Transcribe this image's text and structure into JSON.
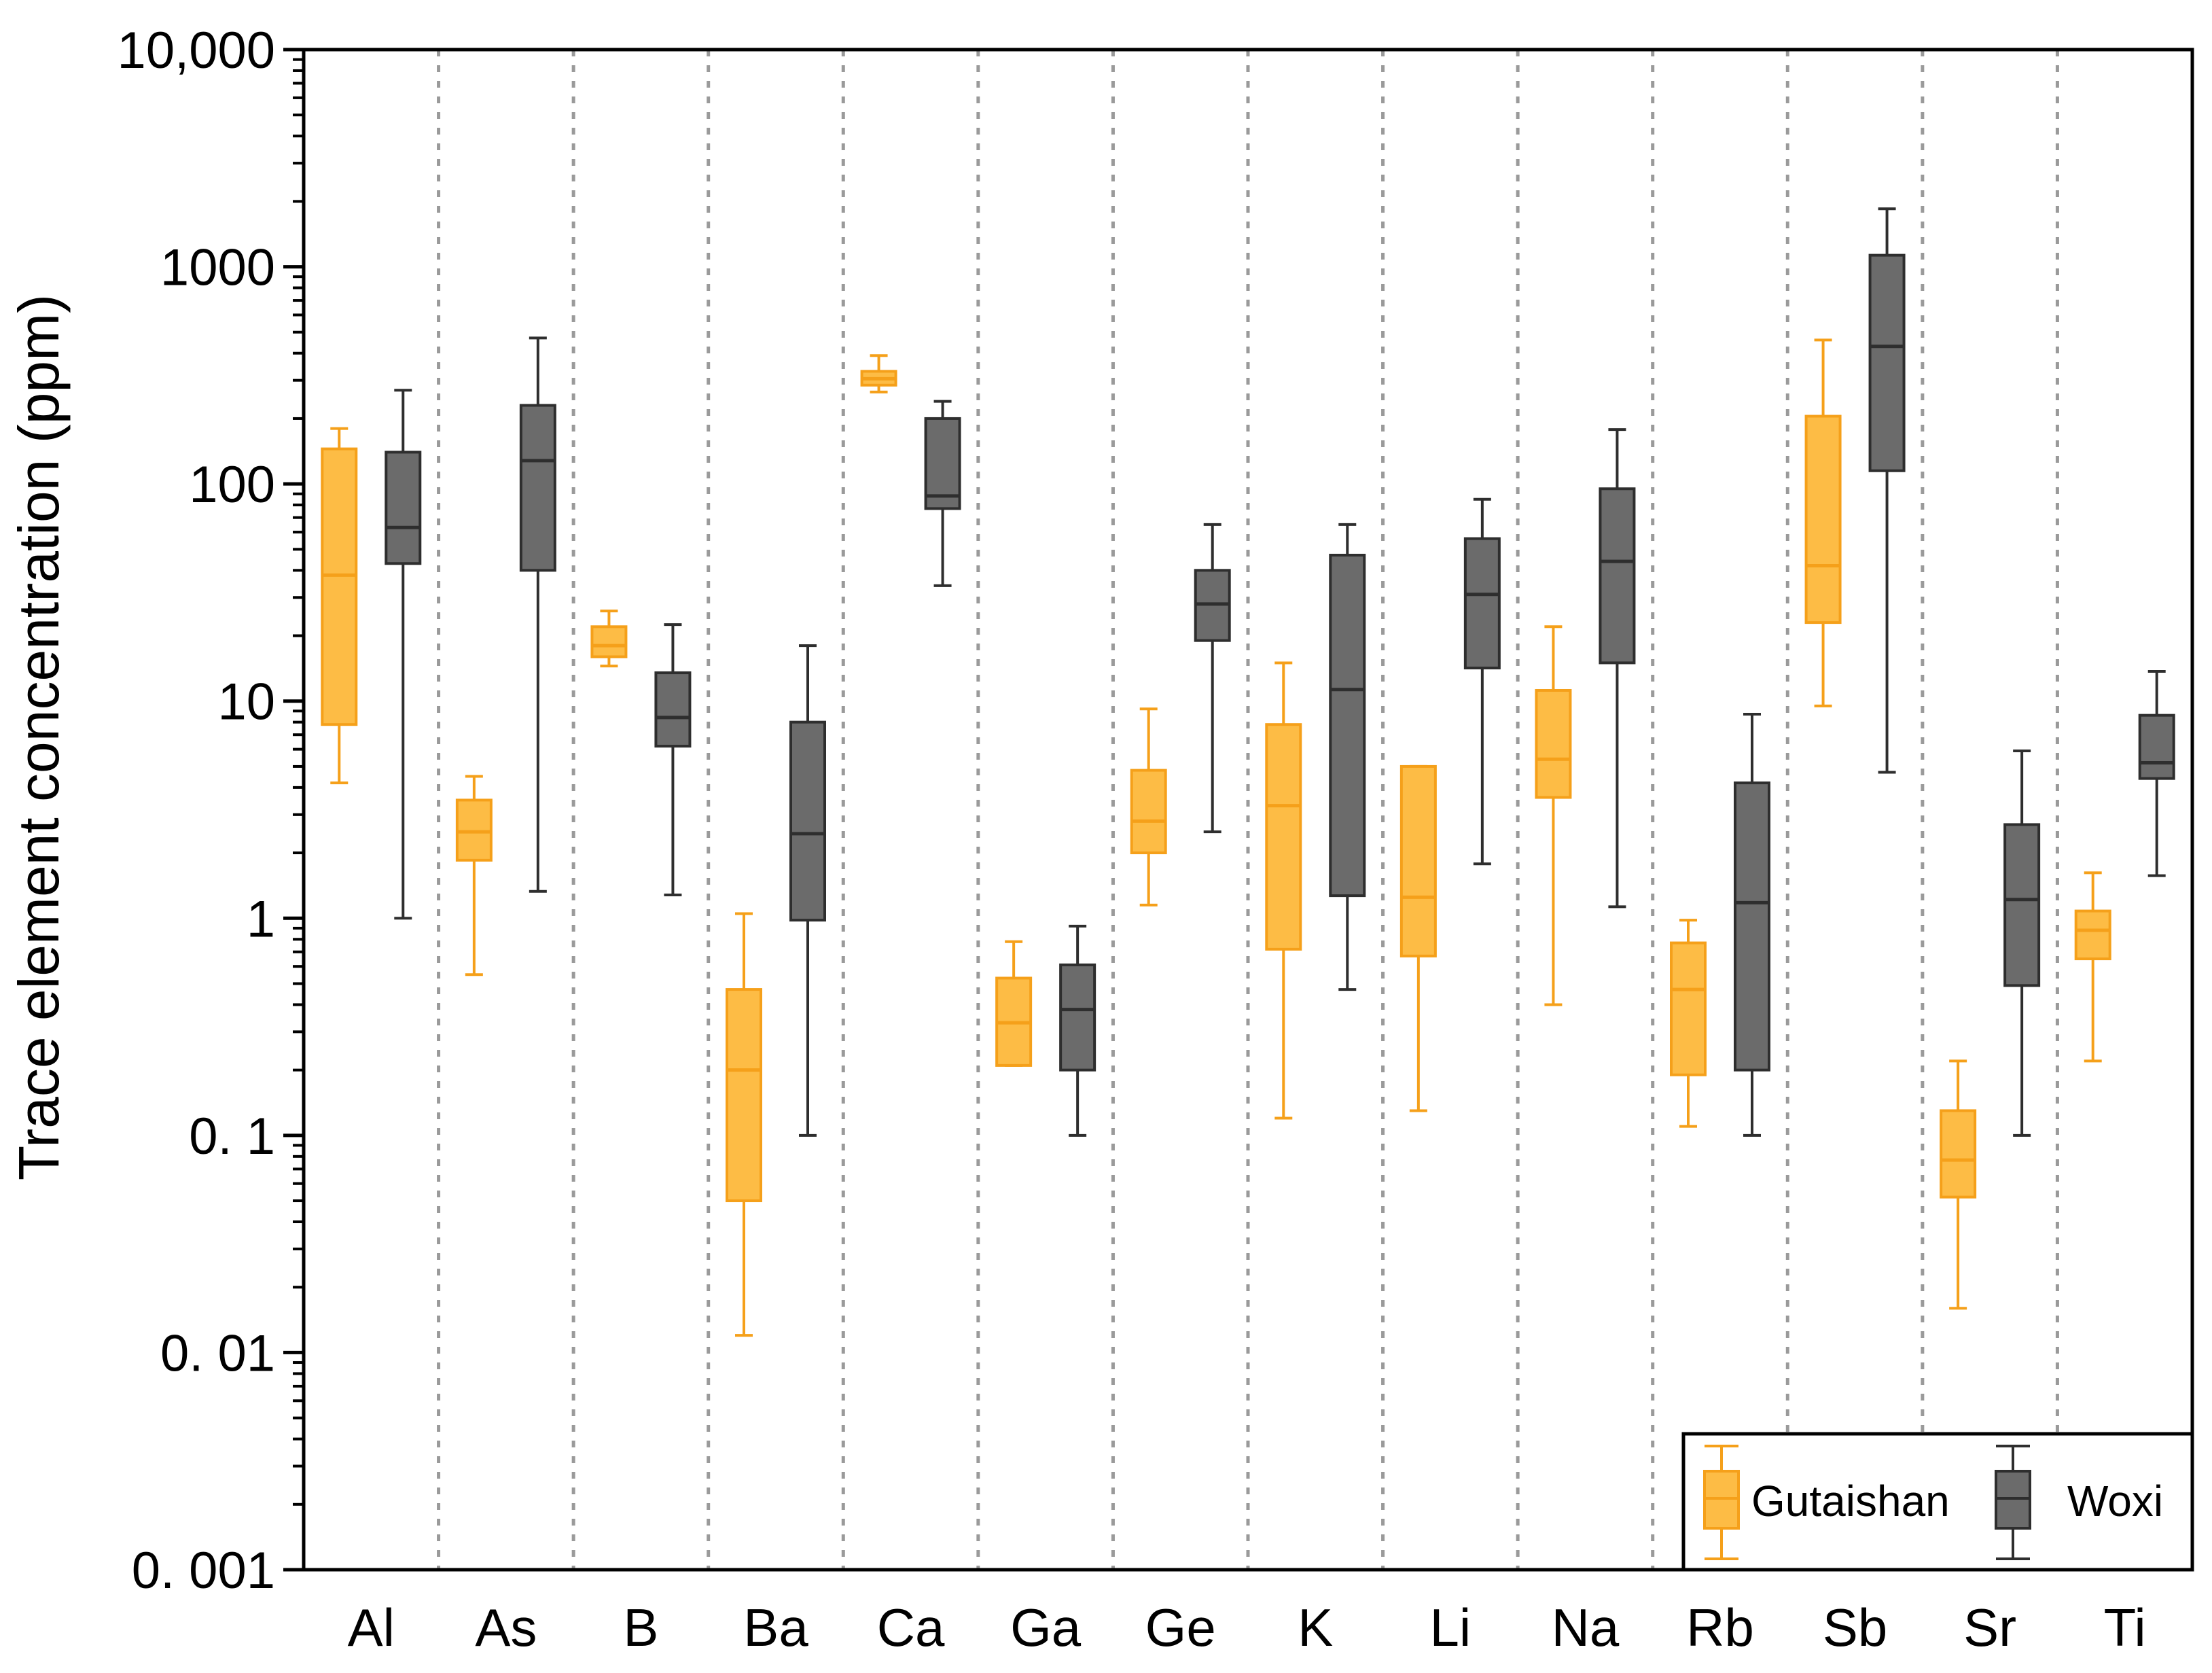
{
  "chart_data": {
    "type": "box",
    "title": "",
    "xlabel": "",
    "ylabel": "Trace element concentration (ppm)",
    "yscale": "log",
    "ylim": [
      0.001,
      10000
    ],
    "y_tick_values": [
      0.001,
      0.01,
      0.1,
      1,
      10,
      100,
      1000,
      10000
    ],
    "y_tick_labels": [
      "0. 001",
      "0. 01",
      "0. 1",
      "1",
      "10",
      "100",
      "1000",
      "10,000"
    ],
    "categories": [
      "Al",
      "As",
      "B",
      "Ba",
      "Ca",
      "Ga",
      "Ge",
      "K",
      "Li",
      "Na",
      "Rb",
      "Sb",
      "Sr",
      "Ti"
    ],
    "legend_position": "bottom-right",
    "colors": {
      "Gutaishan_fill": "#FDBC45",
      "Gutaishan_line": "#F5A01A",
      "Woxi_fill": "#6B6B6B",
      "Woxi_line": "#2E2E2E",
      "divider": "#9A9A9A",
      "axis": "#000000"
    },
    "series": [
      {
        "name": "Gutaishan",
        "boxes": [
          {
            "category": "Al",
            "min": 4.2,
            "q1": 7.8,
            "median": 38,
            "q3": 145,
            "max": 180
          },
          {
            "category": "As",
            "min": 0.55,
            "q1": 1.85,
            "median": 2.5,
            "q3": 3.5,
            "max": 4.5
          },
          {
            "category": "B",
            "min": 14.5,
            "q1": 16,
            "median": 18,
            "q3": 22,
            "max": 26
          },
          {
            "category": "Ba",
            "min": 0.012,
            "q1": 0.05,
            "median": 0.2,
            "q3": 0.47,
            "max": 1.05
          },
          {
            "category": "Ca",
            "min": 265,
            "q1": 285,
            "median": 305,
            "q3": 330,
            "max": 390
          },
          {
            "category": "Ga",
            "min": 0.21,
            "q1": 0.21,
            "median": 0.33,
            "q3": 0.53,
            "max": 0.78
          },
          {
            "category": "Ge",
            "min": 1.15,
            "q1": 2.0,
            "median": 2.8,
            "q3": 4.8,
            "max": 9.2
          },
          {
            "category": "K",
            "min": 0.12,
            "q1": 0.72,
            "median": 3.3,
            "q3": 7.8,
            "max": 15
          },
          {
            "category": "Li",
            "min": 0.13,
            "q1": 0.67,
            "median": 1.25,
            "q3": 5.0,
            "max": 5.0
          },
          {
            "category": "Na",
            "min": 0.4,
            "q1": 3.6,
            "median": 5.4,
            "q3": 11.2,
            "max": 22
          },
          {
            "category": "Rb",
            "min": 0.11,
            "q1": 0.19,
            "median": 0.47,
            "q3": 0.77,
            "max": 0.98
          },
          {
            "category": "Sb",
            "min": 9.5,
            "q1": 23,
            "median": 42,
            "q3": 205,
            "max": 460
          },
          {
            "category": "Sr",
            "min": 0.016,
            "q1": 0.052,
            "median": 0.077,
            "q3": 0.13,
            "max": 0.22
          },
          {
            "category": "Ti",
            "min": 0.22,
            "q1": 0.65,
            "median": 0.88,
            "q3": 1.08,
            "max": 1.62
          }
        ]
      },
      {
        "name": "Woxi",
        "boxes": [
          {
            "category": "Al",
            "min": 1.0,
            "q1": 43,
            "median": 63,
            "q3": 140,
            "max": 270
          },
          {
            "category": "As",
            "min": 1.33,
            "q1": 40,
            "median": 128,
            "q3": 230,
            "max": 470
          },
          {
            "category": "B",
            "min": 1.28,
            "q1": 6.2,
            "median": 8.4,
            "q3": 13.5,
            "max": 22.5
          },
          {
            "category": "Ba",
            "min": 0.1,
            "q1": 0.98,
            "median": 2.45,
            "q3": 8.0,
            "max": 18
          },
          {
            "category": "Ca",
            "min": 34,
            "q1": 77,
            "median": 88,
            "q3": 200,
            "max": 240
          },
          {
            "category": "Ga",
            "min": 0.1,
            "q1": 0.2,
            "median": 0.38,
            "q3": 0.61,
            "max": 0.92
          },
          {
            "category": "Ge",
            "min": 2.5,
            "q1": 19,
            "median": 28,
            "q3": 40,
            "max": 65
          },
          {
            "category": "K",
            "min": 0.47,
            "q1": 1.27,
            "median": 11.3,
            "q3": 47,
            "max": 65
          },
          {
            "category": "Li",
            "min": 1.78,
            "q1": 14.2,
            "median": 31,
            "q3": 56,
            "max": 85
          },
          {
            "category": "Na",
            "min": 1.13,
            "q1": 15,
            "median": 44,
            "q3": 95,
            "max": 178
          },
          {
            "category": "Rb",
            "min": 0.1,
            "q1": 0.2,
            "median": 1.18,
            "q3": 4.2,
            "max": 8.7
          },
          {
            "category": "Sb",
            "min": 4.7,
            "q1": 115,
            "median": 430,
            "q3": 1130,
            "max": 1850
          },
          {
            "category": "Sr",
            "min": 0.1,
            "q1": 0.49,
            "median": 1.22,
            "q3": 2.7,
            "max": 5.9
          },
          {
            "category": "Ti",
            "min": 1.57,
            "q1": 4.4,
            "median": 5.2,
            "q3": 8.6,
            "max": 13.7
          }
        ]
      }
    ],
    "legend": [
      {
        "label": "Gutaishan",
        "series": "Gutaishan"
      },
      {
        "label": "Woxi",
        "series": "Woxi"
      }
    ]
  }
}
